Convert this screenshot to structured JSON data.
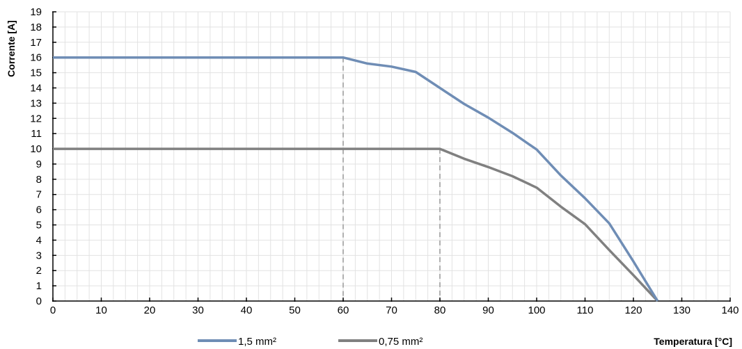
{
  "chart_data": {
    "type": "line",
    "title": "",
    "xlabel": "Temperatura [°C]",
    "ylabel": "Corrente [A]",
    "xlim": [
      0,
      140
    ],
    "ylim": [
      0,
      19
    ],
    "xticks": [
      0,
      10,
      20,
      30,
      40,
      50,
      60,
      70,
      80,
      90,
      100,
      110,
      120,
      130,
      140
    ],
    "yticks": [
      0,
      1,
      2,
      3,
      4,
      5,
      6,
      7,
      8,
      9,
      10,
      11,
      12,
      13,
      14,
      15,
      16,
      17,
      18,
      19
    ],
    "grid": true,
    "legend_position": "bottom",
    "series": [
      {
        "name": "1,5 mm²",
        "color": "#6f8db5",
        "x": [
          0,
          60,
          65,
          70,
          75,
          80,
          85,
          90,
          95,
          100,
          105,
          110,
          115,
          120,
          125
        ],
        "y": [
          16,
          16,
          15.6,
          15.4,
          15.05,
          14,
          12.95,
          12.05,
          11.05,
          9.95,
          8.25,
          6.75,
          5.1,
          2.6,
          0
        ]
      },
      {
        "name": "0,75 mm²",
        "color": "#808080",
        "x": [
          0,
          80,
          85,
          90,
          95,
          100,
          105,
          110,
          115,
          120,
          125
        ],
        "y": [
          10,
          10,
          9.35,
          8.8,
          8.2,
          7.45,
          6.2,
          5.05,
          3.35,
          1.7,
          0
        ]
      }
    ],
    "reference_lines": [
      {
        "x": 60,
        "y": 16,
        "color": "#b0b0b0"
      },
      {
        "x": 80,
        "y": 10,
        "color": "#b0b0b0"
      }
    ]
  }
}
